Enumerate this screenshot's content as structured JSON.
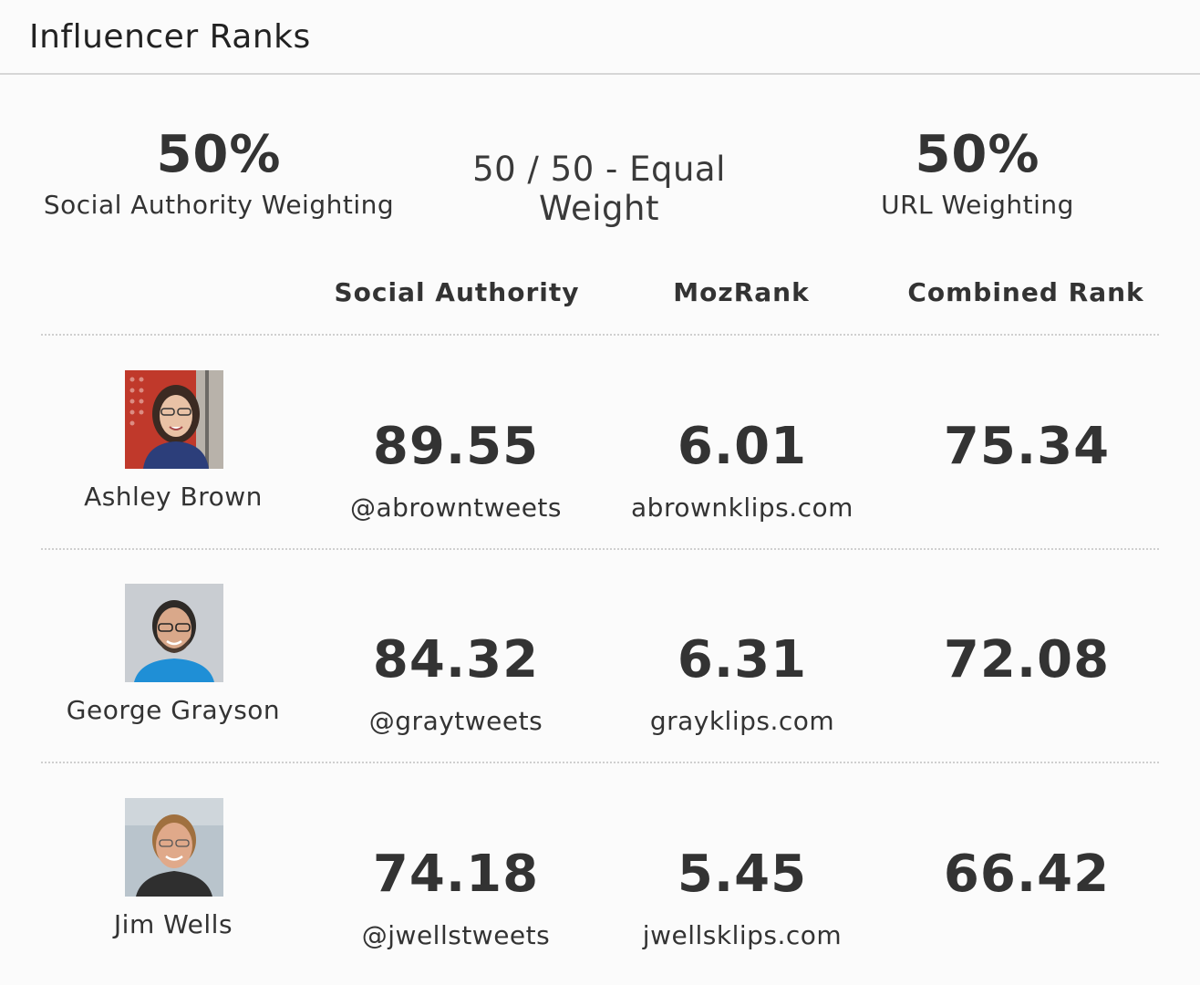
{
  "widget": {
    "title": "Influencer Ranks"
  },
  "weighting": {
    "social_pct": "50%",
    "social_label": "Social Authority Weighting",
    "mode_label": "50 / 50 - Equal Weight",
    "url_pct": "50%",
    "url_label": "URL Weighting"
  },
  "columns": {
    "social_authority": "Social Authority",
    "mozrank": "MozRank",
    "combined_rank": "Combined Rank"
  },
  "rows": [
    {
      "name": "Ashley Brown",
      "social_authority": "89.55",
      "twitter": "@abrowntweets",
      "mozrank": "6.01",
      "domain": "abrownklips.com",
      "combined_rank": "75.34"
    },
    {
      "name": "George Grayson",
      "social_authority": "84.32",
      "twitter": "@graytweets",
      "mozrank": "6.31",
      "domain": "grayklips.com",
      "combined_rank": "72.08"
    },
    {
      "name": "Jim Wells",
      "social_authority": "74.18",
      "twitter": "@jwellstweets",
      "mozrank": "5.45",
      "domain": "jwellsklips.com",
      "combined_rank": "66.42"
    }
  ]
}
